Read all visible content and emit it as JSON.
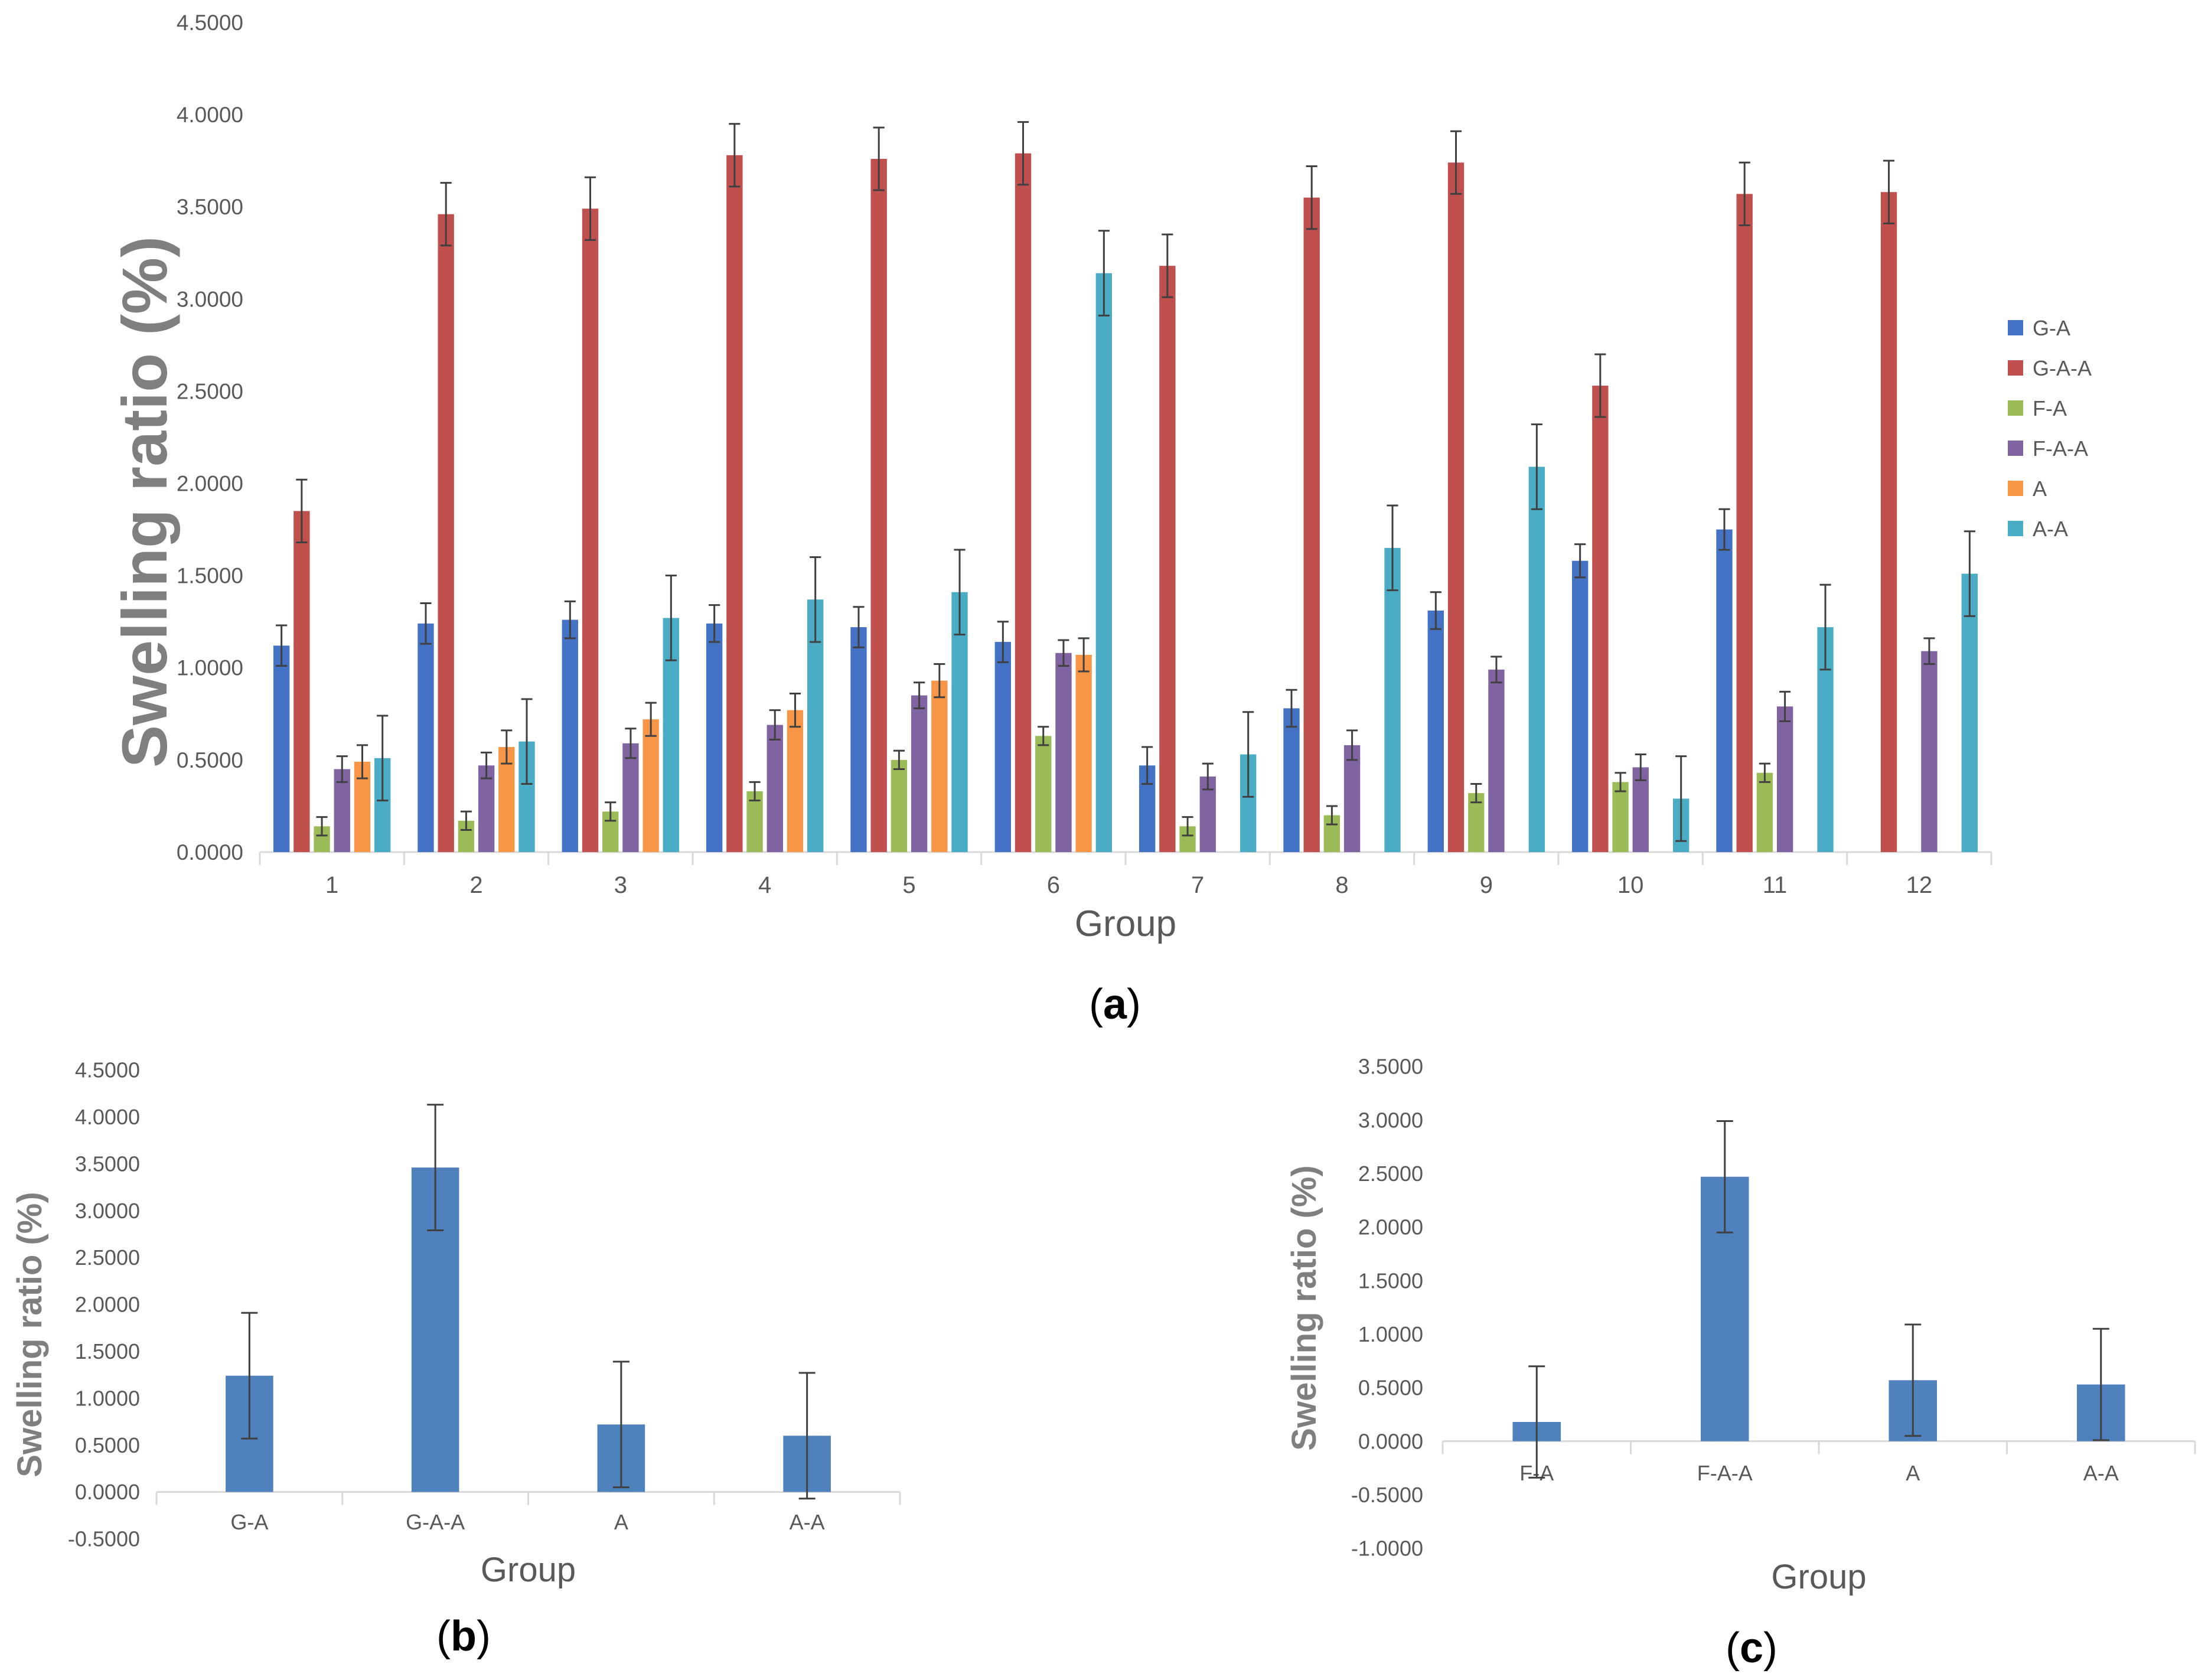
{
  "chart_data": [
    {
      "id": "a",
      "type": "bar",
      "caption_letter": "a",
      "ylabel": "Swelling ratio (%)",
      "xlabel": "Group",
      "ylim": [
        0,
        4.5
      ],
      "ytick_step": 0.5,
      "ytick_labels": [
        "0.0000",
        "0.5000",
        "1.0000",
        "1.5000",
        "2.0000",
        "2.5000",
        "3.0000",
        "3.5000",
        "4.0000",
        "4.5000"
      ],
      "categories": [
        "1",
        "2",
        "3",
        "4",
        "5",
        "6",
        "7",
        "8",
        "9",
        "10",
        "11",
        "12"
      ],
      "legend_position": "right",
      "series": [
        {
          "name": "G-A",
          "color": "#4472C4",
          "values": [
            1.12,
            1.24,
            1.26,
            1.24,
            1.22,
            1.14,
            0.47,
            0.78,
            1.31,
            1.58,
            1.75,
            null
          ],
          "errors": [
            0.11,
            0.11,
            0.1,
            0.1,
            0.11,
            0.11,
            0.1,
            0.1,
            0.1,
            0.09,
            0.11,
            null
          ]
        },
        {
          "name": "G-A-A",
          "color": "#C0504D",
          "values": [
            1.85,
            3.46,
            3.49,
            3.78,
            3.76,
            3.79,
            3.18,
            3.55,
            3.74,
            2.53,
            3.57,
            3.58
          ],
          "errors": [
            0.17,
            0.17,
            0.17,
            0.17,
            0.17,
            0.17,
            0.17,
            0.17,
            0.17,
            0.17,
            0.17,
            0.17
          ]
        },
        {
          "name": "F-A",
          "color": "#9BBB59",
          "values": [
            0.14,
            0.17,
            0.22,
            0.33,
            0.5,
            0.63,
            0.14,
            0.2,
            0.32,
            0.38,
            0.43,
            null
          ],
          "errors": [
            0.05,
            0.05,
            0.05,
            0.05,
            0.05,
            0.05,
            0.05,
            0.05,
            0.05,
            0.05,
            0.05,
            null
          ]
        },
        {
          "name": "F-A-A",
          "color": "#8064A2",
          "values": [
            0.45,
            0.47,
            0.59,
            0.69,
            0.85,
            1.08,
            0.41,
            0.58,
            0.99,
            0.46,
            0.79,
            1.09
          ],
          "errors": [
            0.07,
            0.07,
            0.08,
            0.08,
            0.07,
            0.07,
            0.07,
            0.08,
            0.07,
            0.07,
            0.08,
            0.07
          ]
        },
        {
          "name": "A",
          "color": "#F79646",
          "values": [
            0.49,
            0.57,
            0.72,
            0.77,
            0.93,
            1.07,
            null,
            null,
            null,
            null,
            null,
            null
          ],
          "errors": [
            0.09,
            0.09,
            0.09,
            0.09,
            0.09,
            0.09,
            null,
            null,
            null,
            null,
            null,
            null
          ]
        },
        {
          "name": "A-A",
          "color": "#4BACC6",
          "values": [
            0.51,
            0.6,
            1.27,
            1.37,
            1.41,
            3.14,
            0.53,
            1.65,
            2.09,
            0.29,
            1.22,
            1.51
          ],
          "errors": [
            0.23,
            0.23,
            0.23,
            0.23,
            0.23,
            0.23,
            0.23,
            0.23,
            0.23,
            0.23,
            0.23,
            0.23
          ]
        }
      ]
    },
    {
      "id": "b",
      "type": "bar",
      "caption_letter": "b",
      "ylabel": "Swelling ratio (%)",
      "xlabel": "Group",
      "ylim": [
        -0.5,
        4.5
      ],
      "ytick_step": 0.5,
      "ytick_labels": [
        "-0.5000",
        "0.0000",
        "0.5000",
        "1.0000",
        "1.5000",
        "2.0000",
        "2.5000",
        "3.0000",
        "3.5000",
        "4.0000",
        "4.5000"
      ],
      "categories": [
        "G-A",
        "G-A-A",
        "A",
        "A-A"
      ],
      "series": [
        {
          "name": "",
          "color": "#4F81BD",
          "values": [
            1.24,
            3.46,
            0.72,
            0.6
          ],
          "errors": [
            0.67,
            0.67,
            0.67,
            0.67
          ]
        }
      ]
    },
    {
      "id": "c",
      "type": "bar",
      "caption_letter": "c",
      "ylabel": "Swelling ratio (%)",
      "xlabel": "Group",
      "ylim": [
        -1.0,
        3.5
      ],
      "ytick_step": 0.5,
      "ytick_labels": [
        "-1.0000",
        "-0.5000",
        "0.0000",
        "0.5000",
        "1.0000",
        "1.5000",
        "2.0000",
        "2.5000",
        "3.0000",
        "3.5000"
      ],
      "categories": [
        "F-A",
        "F-A-A",
        "A",
        "A-A"
      ],
      "series": [
        {
          "name": "",
          "color": "#4F81BD",
          "values": [
            0.18,
            2.47,
            0.57,
            0.53
          ],
          "errors": [
            0.52,
            0.52,
            0.52,
            0.52
          ]
        }
      ]
    }
  ]
}
